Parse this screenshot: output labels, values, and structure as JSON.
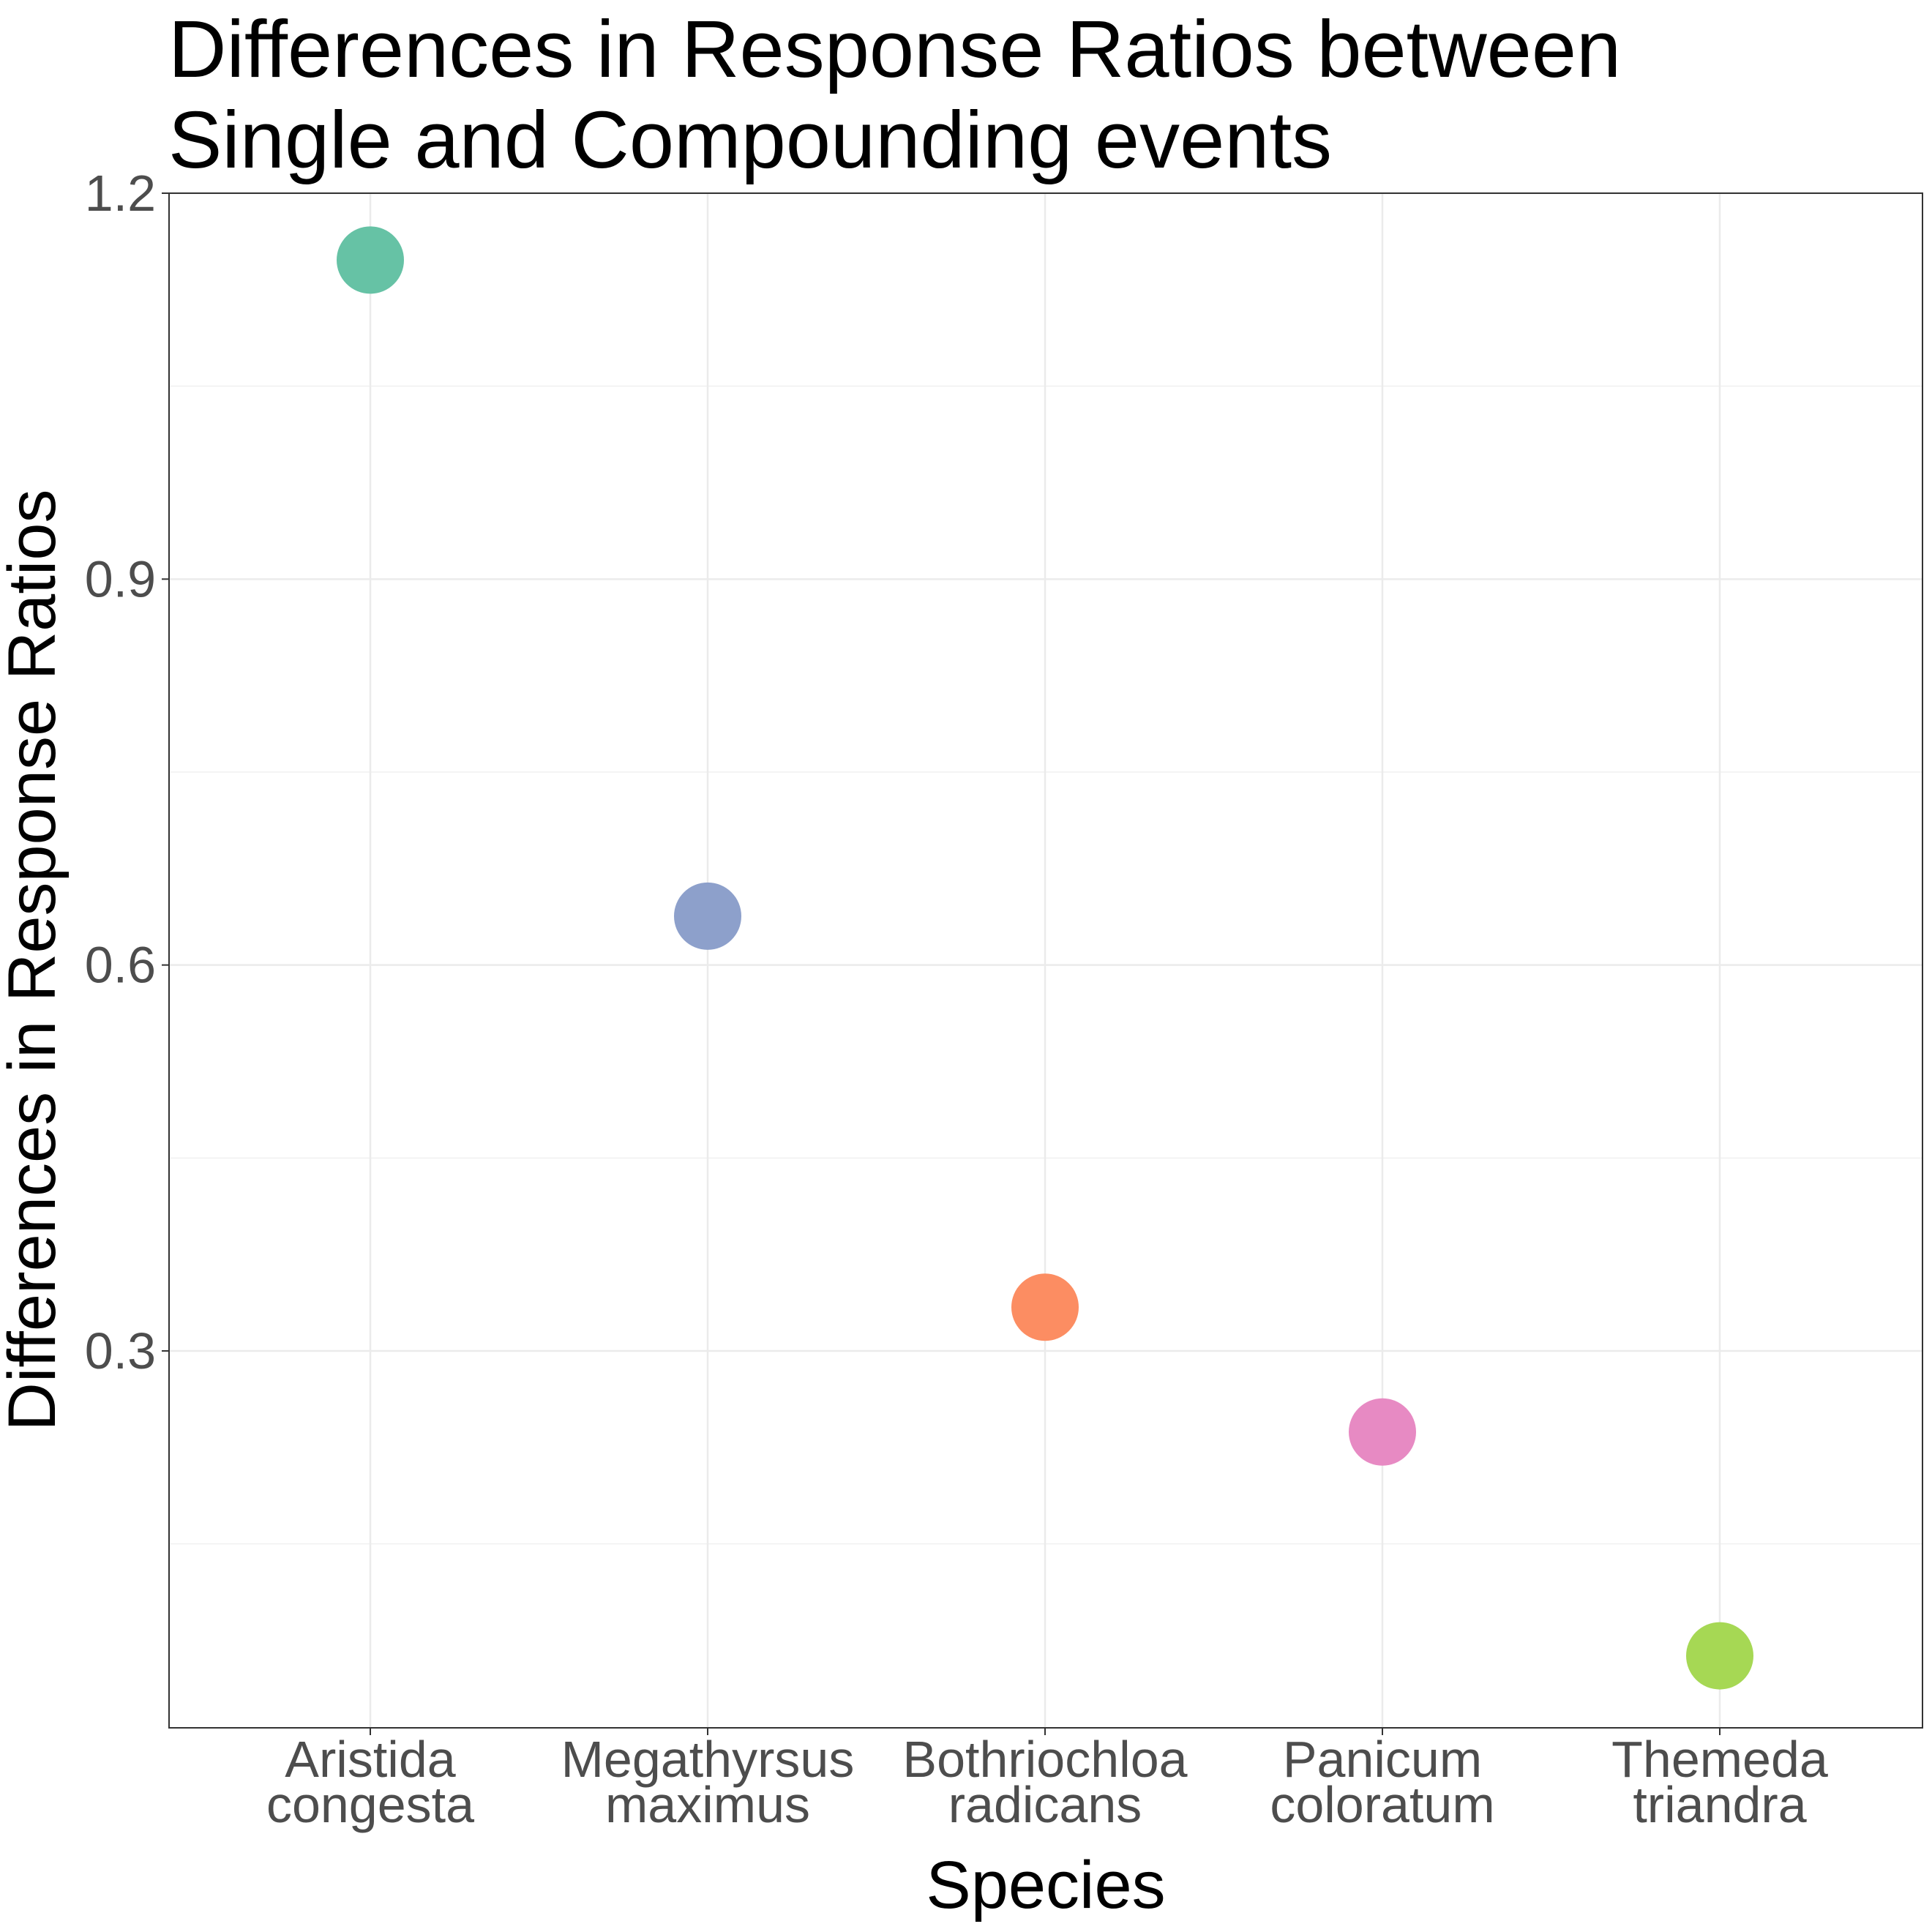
{
  "chart_data": {
    "type": "scatter",
    "title_lines": [
      "Differences in Response Ratios between",
      "Single and Compounding events"
    ],
    "xlabel": "Species",
    "ylabel": "Differences in Response Ratios",
    "categories": [
      [
        "Aristida",
        "congesta"
      ],
      [
        "Megathyrsus",
        "maximus"
      ],
      [
        "Bothriochloa",
        "radicans"
      ],
      [
        "Panicum",
        "coloratum"
      ],
      [
        "Themeda",
        "triandra"
      ]
    ],
    "values": [
      1.148,
      0.638,
      0.334,
      0.237,
      0.063
    ],
    "point_colors": [
      "#66C2A5",
      "#8DA0CB",
      "#FC8D62",
      "#E78AC3",
      "#A6D854"
    ],
    "ylim": [
      0.007,
      1.2
    ],
    "yticks": [
      0.3,
      0.6,
      0.9,
      1.2
    ],
    "ytick_labels": [
      "0.3",
      "0.6",
      "0.9",
      "1.2"
    ],
    "grid": true,
    "legend": "none"
  }
}
